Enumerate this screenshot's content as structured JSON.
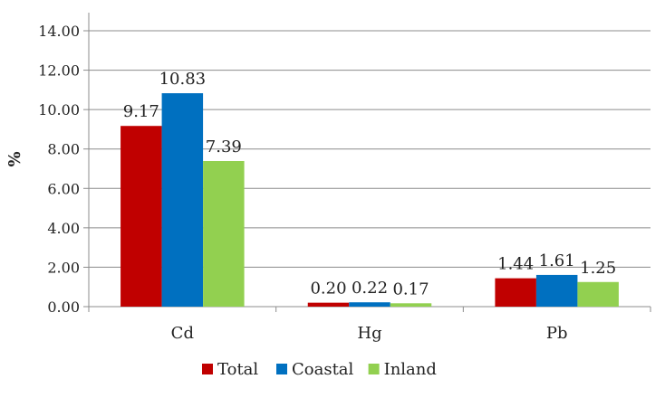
{
  "chart_data": {
    "type": "bar",
    "title": "",
    "xlabel": "",
    "ylabel": "%",
    "ylim": [
      0,
      14
    ],
    "yticks": [
      "0.00",
      "2.00",
      "4.00",
      "6.00",
      "8.00",
      "10.00",
      "12.00",
      "14.00"
    ],
    "grid": "horizontal",
    "legend_position": "bottom",
    "categories": [
      "Cd",
      "Hg",
      "Pb"
    ],
    "series": [
      {
        "name": "Total",
        "color": "#c00000",
        "values": [
          9.17,
          0.2,
          1.44
        ],
        "labels": [
          "9.17",
          "0.20",
          "1.44"
        ]
      },
      {
        "name": "Coastal",
        "color": "#0070c0",
        "values": [
          10.83,
          0.22,
          1.61
        ],
        "labels": [
          "10.83",
          "0.22",
          "1.61"
        ]
      },
      {
        "name": "Inland",
        "color": "#92d050",
        "values": [
          7.39,
          0.17,
          1.25
        ],
        "labels": [
          "7.39",
          "0.17",
          "1.25"
        ]
      }
    ]
  }
}
